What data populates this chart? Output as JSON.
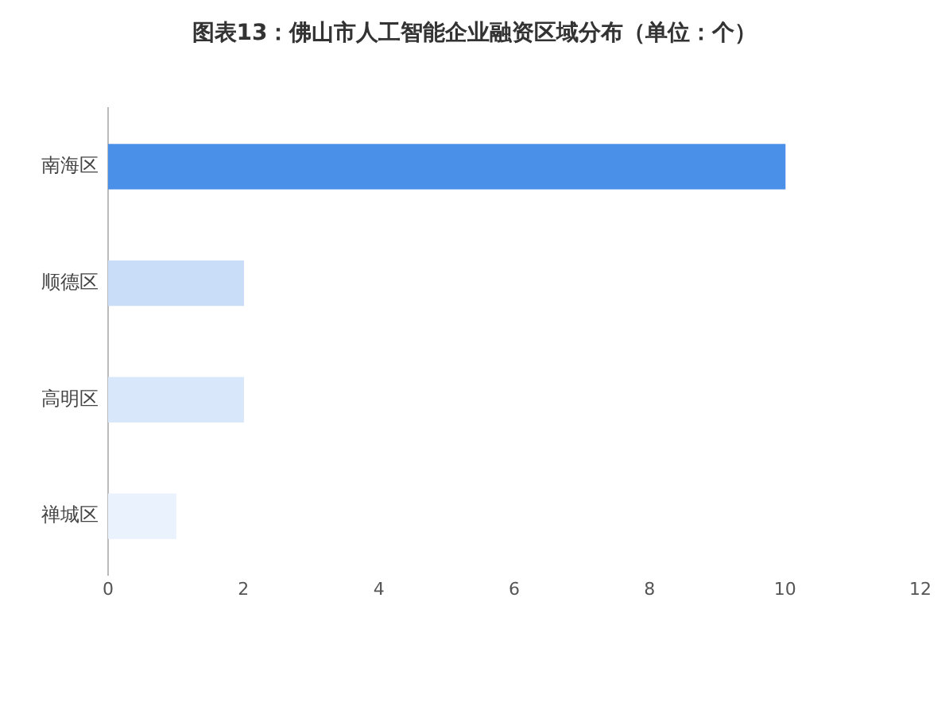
{
  "chart_data": {
    "type": "bar",
    "orientation": "horizontal",
    "title": "图表13：佛山市人工智能企业融资区域分布（单位：个）",
    "categories": [
      "南海区",
      "顺德区",
      "高明区",
      "禅城区"
    ],
    "values": [
      10,
      2,
      2,
      1
    ],
    "colors": [
      "#4a8fe8",
      "#c9ddf8",
      "#d8e7fa",
      "#e9f2fd"
    ],
    "xlim": [
      0,
      12
    ],
    "xticks": [
      0,
      2,
      4,
      6,
      8,
      10,
      12
    ],
    "grid": false,
    "legend": false
  }
}
